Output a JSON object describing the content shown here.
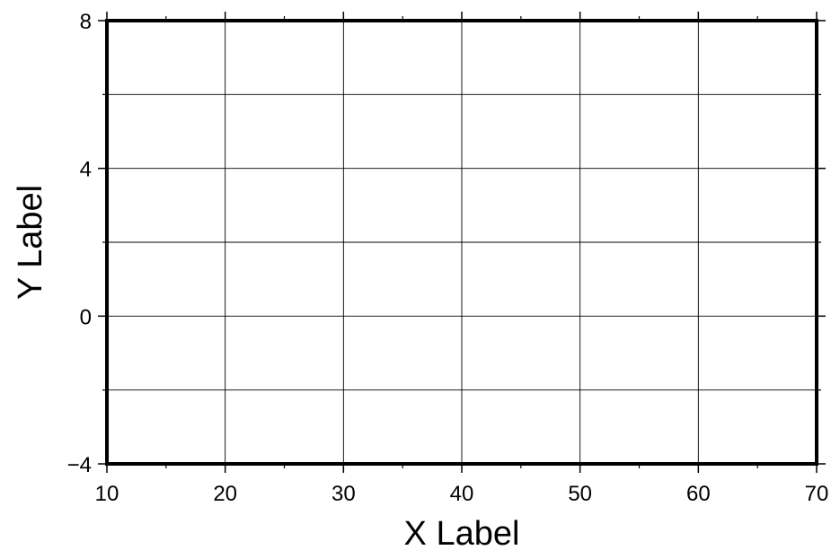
{
  "chart_data": {
    "type": "scatter",
    "title": "",
    "xlabel": "X Label",
    "ylabel": "Y Label",
    "xlim": [
      10,
      70
    ],
    "ylim": [
      -4,
      8
    ],
    "x_ticks": [
      10,
      20,
      30,
      40,
      50,
      60,
      70
    ],
    "x_tick_labels": [
      "10",
      "20",
      "30",
      "40",
      "50",
      "60",
      "70"
    ],
    "y_ticks": [
      -4,
      0,
      4,
      8
    ],
    "y_tick_labels": [
      "−4",
      "0",
      "4",
      "8"
    ],
    "x_grid_values": [
      20,
      30,
      40,
      50,
      60
    ],
    "y_grid_values": [
      -2,
      0,
      2,
      4,
      6
    ],
    "x_minor_ticks": [
      15,
      25,
      35,
      45,
      55,
      65
    ],
    "y_minor_ticks": [
      -2,
      2,
      6
    ],
    "grid": true,
    "series": [],
    "colors": {
      "frame": "#000000",
      "grid": "#000000",
      "background": "#ffffff"
    }
  }
}
